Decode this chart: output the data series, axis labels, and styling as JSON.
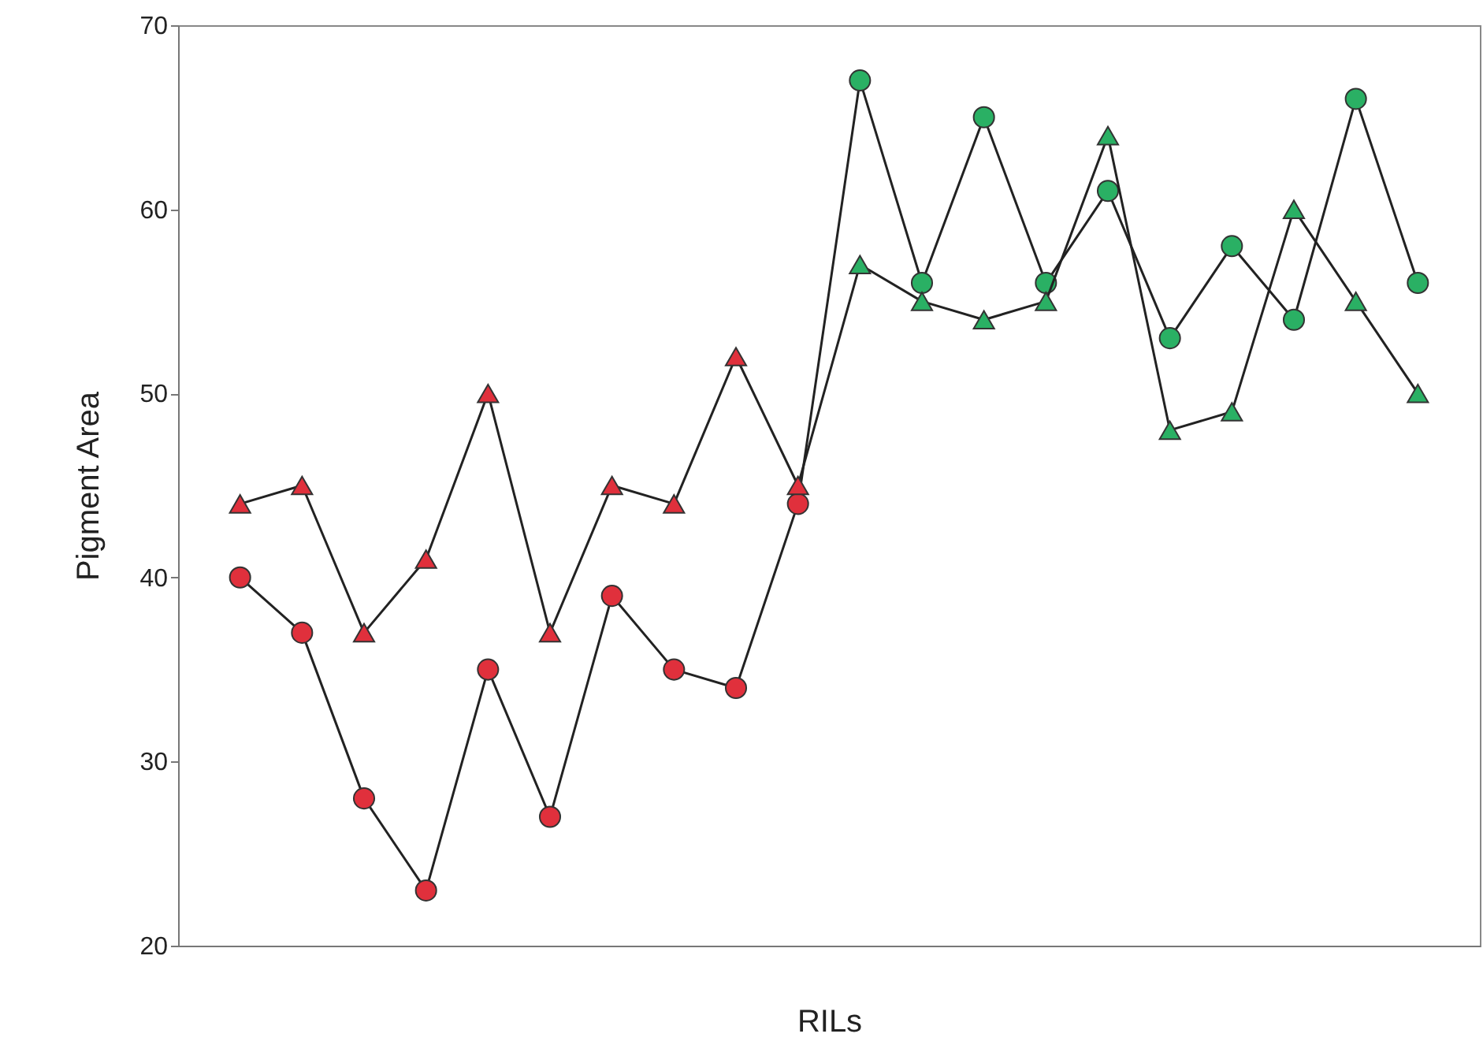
{
  "chart_data": {
    "type": "line",
    "xlabel": "RILs",
    "ylabel": "Pigment Area",
    "categories": [
      null,
      null,
      null,
      null,
      null,
      null,
      null,
      null,
      null,
      null,
      null,
      null,
      null,
      null,
      null,
      null,
      null,
      null,
      null,
      null
    ],
    "ylim": [
      20,
      70
    ],
    "yticks": [
      20,
      30,
      40,
      50,
      60,
      70
    ],
    "grid": false,
    "tick_labels": "y",
    "line_style": "solid",
    "series": [
      {
        "marker": "circle",
        "color": "#222222",
        "colors": [
          "#e0303c",
          "#e0303c",
          "#e0303c",
          "#e0303c",
          "#e0303c",
          "#e0303c",
          "#e0303c",
          "#e0303c",
          "#e0303c",
          "#e0303c",
          "#2ab064",
          "#2ab064",
          "#2ab064",
          "#2ab064",
          "#2ab064",
          "#2ab064",
          "#2ab064",
          "#2ab064",
          "#2ab064",
          "#2ab064"
        ],
        "values": [
          40,
          37,
          28,
          23,
          35,
          27,
          39,
          35,
          34,
          44,
          67,
          56,
          65,
          56,
          61,
          53,
          58,
          54,
          66,
          56
        ]
      },
      {
        "marker": "triangle",
        "color": "#222222",
        "colors": [
          "#e0303c",
          "#e0303c",
          "#e0303c",
          "#e0303c",
          "#e0303c",
          "#e0303c",
          "#e0303c",
          "#e0303c",
          "#e0303c",
          "#e0303c",
          "#2ab064",
          "#2ab064",
          "#2ab064",
          "#2ab064",
          "#2ab064",
          "#2ab064",
          "#2ab064",
          "#2ab064",
          "#2ab064",
          "#2ab064"
        ],
        "values": [
          44,
          45,
          37,
          41,
          50,
          37,
          45,
          44,
          52,
          45,
          57,
          55,
          54,
          55,
          64,
          48,
          49,
          60,
          55,
          50
        ]
      }
    ]
  }
}
